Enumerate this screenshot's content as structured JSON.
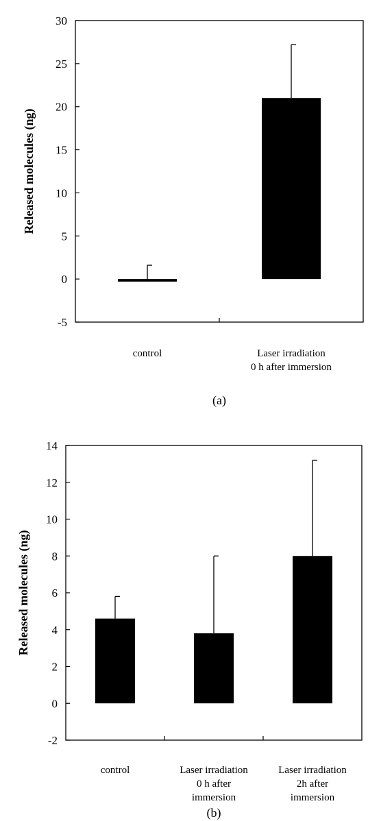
{
  "chart_data": [
    {
      "type": "bar",
      "panel_label": "(a)",
      "ylabel": "Released molecules (ng)",
      "xlabel": "",
      "ylim": [
        -5,
        30
      ],
      "yticks": [
        -5,
        0,
        5,
        10,
        15,
        20,
        25,
        30
      ],
      "categories": [
        [
          "control"
        ],
        [
          "Laser irradiation",
          "0 h after immersion"
        ]
      ],
      "values": [
        -0.3,
        21.0
      ],
      "errors": [
        1.9,
        6.2
      ],
      "bar_color": "#000000"
    },
    {
      "type": "bar",
      "panel_label": "(b)",
      "ylabel": "Released molecules (ng)",
      "xlabel": "",
      "ylim": [
        -2,
        14
      ],
      "yticks": [
        -2,
        0,
        2,
        4,
        6,
        8,
        10,
        12,
        14
      ],
      "categories": [
        [
          "control"
        ],
        [
          "Laser irradiation",
          "0 h after",
          "immersion"
        ],
        [
          "Laser irradiation",
          "2h after",
          "immersion"
        ]
      ],
      "values": [
        4.6,
        3.8,
        8.0
      ],
      "errors": [
        1.2,
        4.2,
        5.2
      ],
      "bar_color": "#000000"
    }
  ]
}
